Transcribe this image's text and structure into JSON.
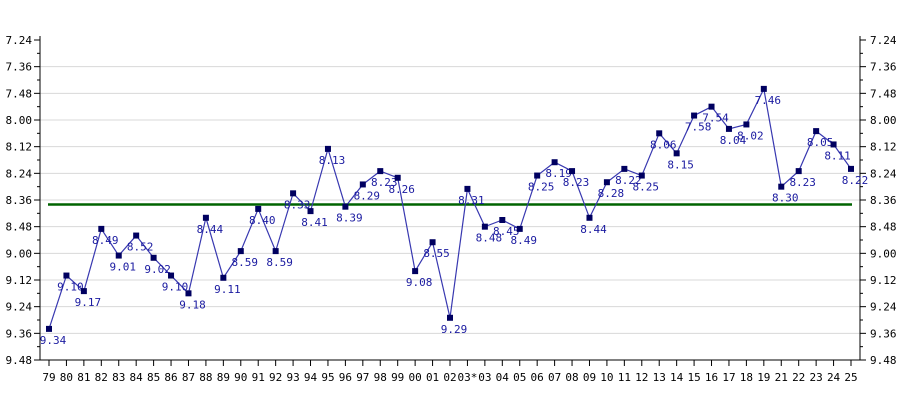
{
  "chart_data": {
    "type": "line",
    "title": "",
    "xlabel": "",
    "ylabel": "",
    "y_format": "minutes.seconds",
    "y_inverted": true,
    "ylim": [
      "7.24",
      "9.48"
    ],
    "y_ticks": [
      "7.24",
      "7.36",
      "7.48",
      "8.00",
      "8.12",
      "8.24",
      "8.36",
      "8.48",
      "9.00",
      "9.12",
      "9.24",
      "9.36",
      "9.48"
    ],
    "grid": true,
    "categories": [
      "79",
      "80",
      "81",
      "82",
      "83",
      "84",
      "85",
      "86",
      "87",
      "88",
      "89",
      "90",
      "91",
      "92",
      "93",
      "94",
      "95",
      "96",
      "97",
      "98",
      "99",
      "00",
      "01",
      "02",
      "03*",
      "03",
      "04",
      "05",
      "06",
      "07",
      "08",
      "09",
      "10",
      "11",
      "12",
      "13",
      "14",
      "15",
      "16",
      "17",
      "18",
      "19",
      "21",
      "22",
      "23",
      "24",
      "25"
    ],
    "series": [
      {
        "name": "time",
        "values": [
          "9.34",
          "9.10",
          "9.17",
          "8.49",
          "9.01",
          "8.52",
          "9.02",
          "9.10",
          "9.18",
          "8.44",
          "9.11",
          "8.59",
          "8.40",
          "8.59",
          "8.33",
          "8.41",
          "8.13",
          "8.39",
          "8.29",
          "8.23",
          "8.26",
          "9.08",
          "8.55",
          "9.29",
          "8.31",
          "8.48",
          "8.45",
          "8.49",
          "8.25",
          "8.19",
          "8.23",
          "8.44",
          "8.28",
          "8.22",
          "8.25",
          "8.06",
          "8.15",
          "7.58",
          "7.54",
          "8.04",
          "8.02",
          "7.46",
          "8.30",
          "8.23",
          "8.05",
          "8.11",
          "8.22"
        ]
      }
    ],
    "reference_line": {
      "value": "8.38"
    },
    "colors": {
      "line": "#3838b0",
      "marker": "#000060",
      "label": "#1a1aa0",
      "reference": "#006400",
      "grid": "#d8d8d8"
    }
  }
}
